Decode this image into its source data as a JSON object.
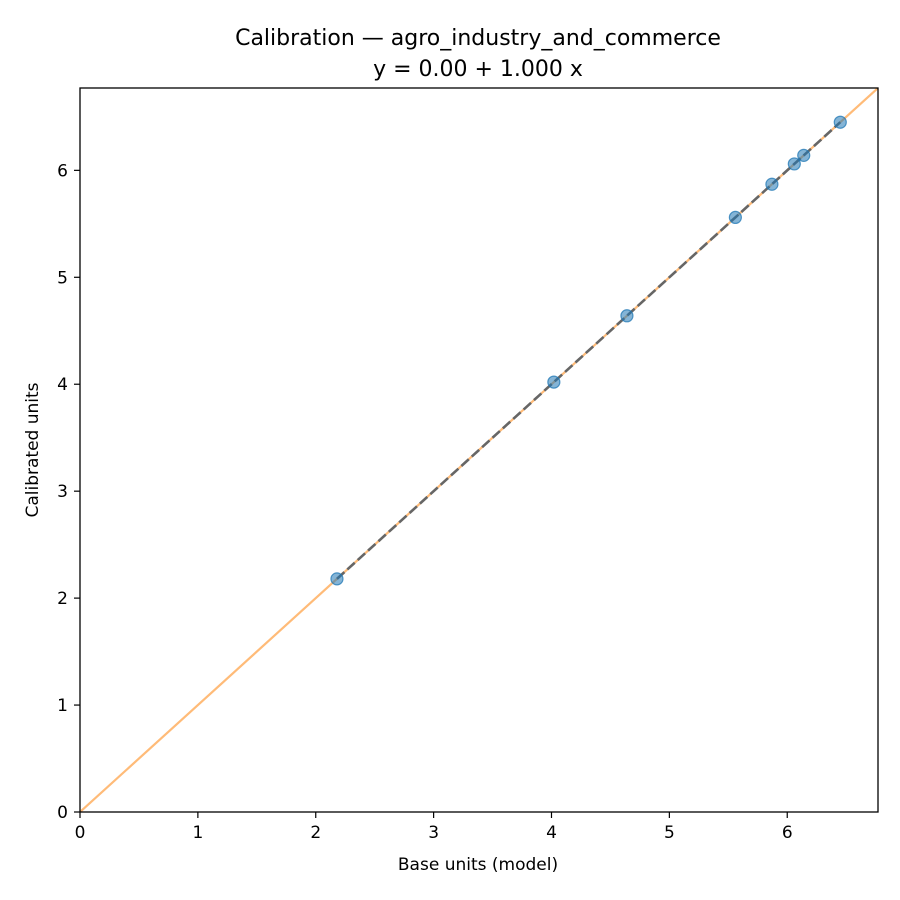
{
  "chart_data": {
    "type": "scatter",
    "title": "Calibration — agro_industry_and_commerce",
    "subtitle": "y = 0.00 + 1.000 x",
    "xlabel": "Base units (model)",
    "ylabel": "Calibrated units",
    "xlim": [
      0,
      6.77
    ],
    "ylim": [
      0,
      6.77
    ],
    "x_ticks": [
      "0",
      "1",
      "2",
      "3",
      "4",
      "5",
      "6"
    ],
    "y_ticks": [
      "0",
      "1",
      "2",
      "3",
      "4",
      "5",
      "6"
    ],
    "grid": false,
    "points": {
      "x": [
        2.18,
        4.02,
        4.64,
        5.56,
        5.87,
        6.06,
        6.14,
        6.45
      ],
      "y": [
        2.18,
        4.02,
        4.64,
        5.56,
        5.87,
        6.06,
        6.14,
        6.45
      ],
      "color": "#1f77b4"
    },
    "identity_line": {
      "color": "#ffbb78"
    },
    "fit_line": {
      "intercept": 0.0,
      "slope": 1.0,
      "color": "#666666",
      "style": "dashed"
    }
  }
}
